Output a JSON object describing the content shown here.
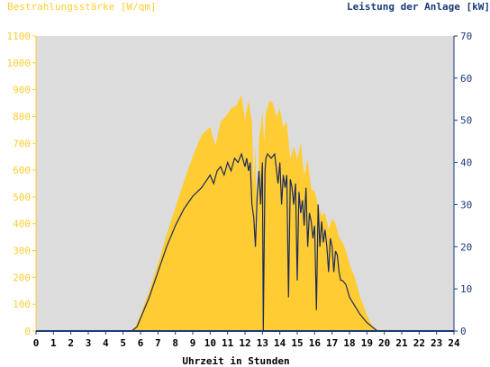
{
  "chart_data": {
    "type": "area",
    "title_left": "Bestrahlungsstärke [W/qm]",
    "title_right": "Leistung der Anlage [kW]",
    "xlabel": "Uhrzeit in Stunden",
    "xlim": [
      0,
      24
    ],
    "x_ticks": [
      "0",
      "1",
      "2",
      "3",
      "4",
      "5",
      "6",
      "7",
      "8",
      "9",
      "10",
      "11",
      "12",
      "13",
      "14",
      "15",
      "16",
      "17",
      "18",
      "19",
      "20",
      "21",
      "22",
      "23",
      "24"
    ],
    "y_left": {
      "min": 0,
      "max": 1100,
      "ticks": [
        "0",
        "100",
        "200",
        "300",
        "400",
        "500",
        "600",
        "700",
        "800",
        "900",
        "1000",
        "1100"
      ]
    },
    "y_right": {
      "min": 0,
      "max": 70,
      "ticks": [
        "0",
        "10",
        "20",
        "30",
        "40",
        "50",
        "60",
        "70"
      ]
    },
    "grid": false,
    "colors": {
      "irradiance_fill": "#ffcc33",
      "power_line": "#1a2a5a",
      "plot_bg": "#dcdcdc",
      "left_axis_text": "#ffcc33",
      "right_axis_text": "#1a3a7a"
    },
    "series": [
      {
        "axis": "left",
        "style": "area",
        "x": [
          0,
          5.4,
          5.7,
          6,
          6.5,
          7,
          7.5,
          8,
          8.5,
          9,
          9.5,
          10,
          10.3,
          10.6,
          10.9,
          11.2,
          11.5,
          11.8,
          12,
          12.2,
          12.4,
          12.5,
          12.6,
          12.7,
          12.8,
          12.9,
          13,
          13.1,
          13.2,
          13.4,
          13.6,
          13.8,
          14,
          14.2,
          14.4,
          14.6,
          14.8,
          15,
          15.2,
          15.4,
          15.6,
          15.8,
          16,
          16.2,
          16.4,
          16.6,
          16.8,
          17,
          17.2,
          17.4,
          17.6,
          17.8,
          18,
          18.3,
          18.6,
          19,
          19.3,
          19.6,
          24
        ],
        "y": [
          0,
          0,
          15,
          60,
          150,
          250,
          360,
          460,
          560,
          650,
          730,
          760,
          690,
          780,
          800,
          830,
          840,
          880,
          790,
          860,
          780,
          540,
          700,
          360,
          720,
          760,
          820,
          700,
          810,
          860,
          850,
          800,
          830,
          760,
          780,
          640,
          690,
          640,
          700,
          580,
          640,
          530,
          520,
          470,
          430,
          440,
          380,
          420,
          400,
          350,
          330,
          300,
          250,
          200,
          130,
          60,
          20,
          5,
          0
        ]
      },
      {
        "axis": "right",
        "style": "line",
        "x": [
          0,
          5.5,
          5.8,
          6,
          6.5,
          7,
          7.5,
          8,
          8.5,
          9,
          9.5,
          10,
          10.2,
          10.4,
          10.6,
          10.8,
          11,
          11.2,
          11.4,
          11.6,
          11.8,
          12,
          12.1,
          12.2,
          12.3,
          12.4,
          12.5,
          12.6,
          12.7,
          12.8,
          12.9,
          13,
          13.05,
          13.1,
          13.15,
          13.2,
          13.3,
          13.5,
          13.7,
          13.9,
          14.0,
          14.1,
          14.2,
          14.3,
          14.4,
          14.5,
          14.6,
          14.7,
          14.8,
          14.9,
          15.0,
          15.1,
          15.2,
          15.3,
          15.4,
          15.5,
          15.6,
          15.7,
          15.8,
          15.9,
          16.0,
          16.1,
          16.2,
          16.3,
          16.4,
          16.5,
          16.6,
          16.7,
          16.8,
          16.9,
          17.0,
          17.1,
          17.2,
          17.3,
          17.4,
          17.5,
          17.6,
          17.8,
          18,
          18.3,
          18.6,
          19,
          19.3,
          19.6,
          24
        ],
        "y": [
          0,
          0,
          1,
          3,
          8,
          14,
          20,
          25,
          29,
          32,
          34,
          37,
          35,
          38,
          39,
          37,
          40,
          38,
          41,
          40,
          42,
          39,
          41,
          38,
          40,
          30,
          27,
          20,
          32,
          38,
          30,
          40,
          0,
          20,
          38,
          41,
          42,
          41,
          42,
          35,
          40,
          30,
          37,
          34,
          37,
          8,
          36,
          34,
          30,
          35,
          12,
          33,
          28,
          31,
          25,
          34,
          20,
          28,
          26,
          22,
          25,
          5,
          30,
          20,
          26,
          21,
          24,
          20,
          14,
          22,
          20,
          14,
          19,
          18,
          14,
          12,
          12,
          11,
          8,
          6,
          4,
          2,
          1,
          0,
          0
        ]
      }
    ]
  }
}
